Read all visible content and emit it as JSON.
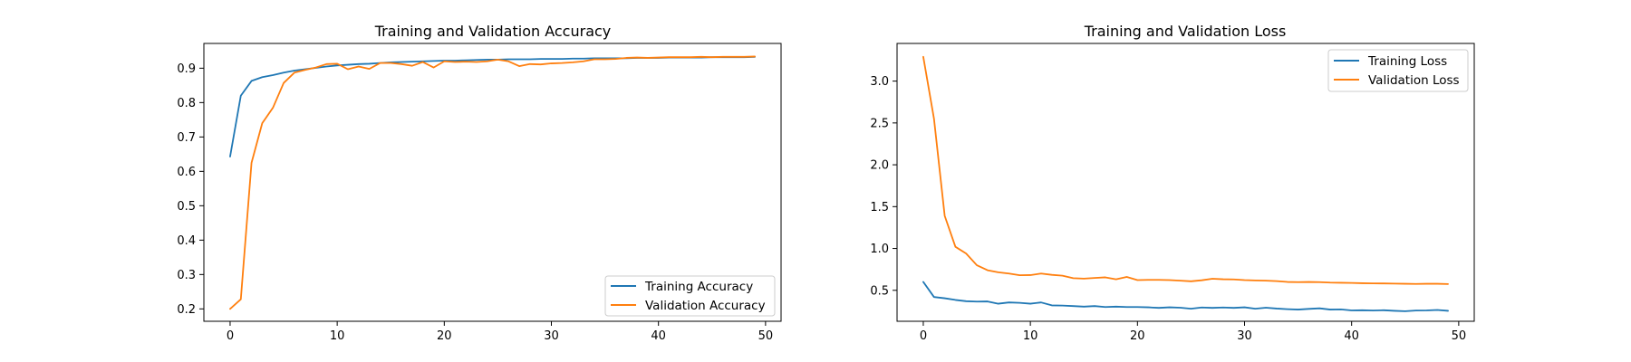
{
  "chart_data": [
    {
      "type": "line",
      "title": "Training and Validation Accuracy",
      "xlabel": "",
      "ylabel": "",
      "xlim": [
        -2.45,
        51.45
      ],
      "ylim": [
        0.164,
        0.972
      ],
      "xticks": [
        0,
        10,
        20,
        30,
        40,
        50
      ],
      "yticks": [
        0.2,
        0.3,
        0.4,
        0.5,
        0.6,
        0.7,
        0.8,
        0.9
      ],
      "legend_position": "lower-right",
      "grid": false,
      "x": [
        0,
        1,
        2,
        3,
        4,
        5,
        6,
        7,
        8,
        9,
        10,
        11,
        12,
        13,
        14,
        15,
        16,
        17,
        18,
        19,
        20,
        21,
        22,
        23,
        24,
        25,
        26,
        27,
        28,
        29,
        30,
        31,
        32,
        33,
        34,
        35,
        36,
        37,
        38,
        39,
        40,
        41,
        42,
        43,
        44,
        45,
        46,
        47,
        48,
        49
      ],
      "series": [
        {
          "name": "Training Accuracy",
          "color": "#1f77b4",
          "values": [
            0.643,
            0.82,
            0.863,
            0.874,
            0.88,
            0.887,
            0.893,
            0.897,
            0.901,
            0.905,
            0.908,
            0.91,
            0.912,
            0.913,
            0.915,
            0.917,
            0.918,
            0.919,
            0.92,
            0.921,
            0.922,
            0.922,
            0.923,
            0.924,
            0.925,
            0.925,
            0.926,
            0.926,
            0.926,
            0.927,
            0.927,
            0.927,
            0.928,
            0.928,
            0.929,
            0.929,
            0.929,
            0.929,
            0.93,
            0.93,
            0.93,
            0.931,
            0.931,
            0.931,
            0.931,
            0.932,
            0.932,
            0.932,
            0.932,
            0.933
          ]
        },
        {
          "name": "Validation Accuracy",
          "color": "#ff7f0e",
          "values": [
            0.2,
            0.228,
            0.625,
            0.74,
            0.785,
            0.857,
            0.887,
            0.895,
            0.902,
            0.912,
            0.913,
            0.897,
            0.905,
            0.898,
            0.915,
            0.915,
            0.912,
            0.907,
            0.918,
            0.902,
            0.92,
            0.918,
            0.919,
            0.918,
            0.92,
            0.925,
            0.92,
            0.906,
            0.912,
            0.911,
            0.914,
            0.915,
            0.917,
            0.92,
            0.926,
            0.926,
            0.927,
            0.93,
            0.931,
            0.93,
            0.931,
            0.932,
            0.932,
            0.932,
            0.933,
            0.932,
            0.933,
            0.933,
            0.933,
            0.934
          ]
        }
      ]
    },
    {
      "type": "line",
      "title": "Training and Validation Loss",
      "xlabel": "",
      "ylabel": "",
      "xlim": [
        -2.45,
        51.45
      ],
      "ylim": [
        0.13,
        3.45
      ],
      "xticks": [
        0,
        10,
        20,
        30,
        40,
        50
      ],
      "yticks": [
        0.5,
        1.0,
        1.5,
        2.0,
        2.5,
        3.0
      ],
      "legend_position": "upper-right",
      "grid": false,
      "x": [
        0,
        1,
        2,
        3,
        4,
        5,
        6,
        7,
        8,
        9,
        10,
        11,
        12,
        13,
        14,
        15,
        16,
        17,
        18,
        19,
        20,
        21,
        22,
        23,
        24,
        25,
        26,
        27,
        28,
        29,
        30,
        31,
        32,
        33,
        34,
        35,
        36,
        37,
        38,
        39,
        40,
        41,
        42,
        43,
        44,
        45,
        46,
        47,
        48,
        49
      ],
      "series": [
        {
          "name": "Training Loss",
          "color": "#1f77b4",
          "values": [
            0.6,
            0.42,
            0.405,
            0.385,
            0.37,
            0.365,
            0.367,
            0.34,
            0.355,
            0.35,
            0.34,
            0.355,
            0.32,
            0.318,
            0.312,
            0.305,
            0.312,
            0.3,
            0.305,
            0.3,
            0.3,
            0.297,
            0.29,
            0.297,
            0.292,
            0.28,
            0.295,
            0.29,
            0.295,
            0.29,
            0.297,
            0.28,
            0.292,
            0.282,
            0.275,
            0.27,
            0.278,
            0.285,
            0.27,
            0.272,
            0.26,
            0.262,
            0.258,
            0.262,
            0.255,
            0.25,
            0.258,
            0.26,
            0.265,
            0.255
          ]
        },
        {
          "name": "Validation Loss",
          "color": "#ff7f0e",
          "values": [
            3.29,
            2.55,
            1.39,
            1.02,
            0.94,
            0.8,
            0.74,
            0.715,
            0.7,
            0.68,
            0.682,
            0.7,
            0.685,
            0.675,
            0.645,
            0.64,
            0.648,
            0.655,
            0.632,
            0.66,
            0.622,
            0.625,
            0.625,
            0.622,
            0.615,
            0.608,
            0.62,
            0.638,
            0.632,
            0.63,
            0.622,
            0.618,
            0.615,
            0.61,
            0.6,
            0.598,
            0.6,
            0.598,
            0.592,
            0.59,
            0.588,
            0.585,
            0.583,
            0.582,
            0.58,
            0.578,
            0.576,
            0.578,
            0.578,
            0.575
          ]
        }
      ]
    }
  ]
}
